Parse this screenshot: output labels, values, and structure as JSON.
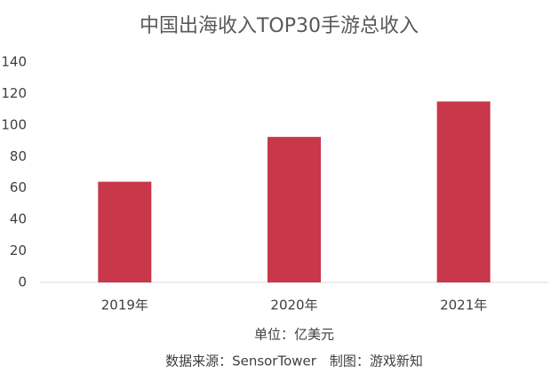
{
  "chart_data": {
    "type": "bar",
    "title": "中国出海收入TOP30手游总收入",
    "categories": [
      "2019年",
      "2020年",
      "2021年"
    ],
    "values": [
      64,
      92.5,
      115
    ],
    "color": "#c8374a",
    "ylim": [
      0,
      140
    ],
    "yticks": [
      0,
      20,
      40,
      60,
      80,
      100,
      120,
      140
    ],
    "grid": false,
    "unit_note": "单位：亿美元",
    "source_note": "数据来源：SensorTower　制图：游戏新知"
  }
}
